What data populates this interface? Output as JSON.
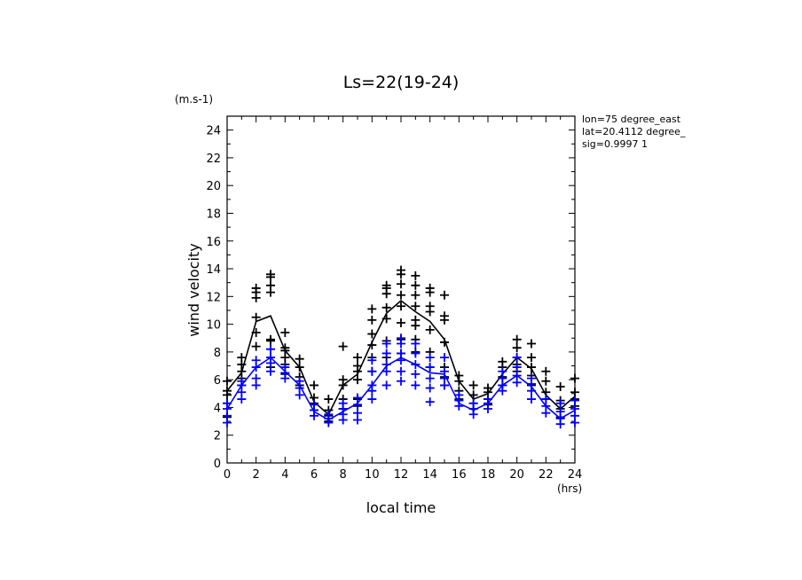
{
  "chart_data": {
    "type": "scatter",
    "title": "Ls=22(19-24)",
    "xlabel": "local time",
    "ylabel": "wind velocity",
    "x_unit": "(hrs)",
    "y_unit": "(m.s-1)",
    "info_lines": [
      "lon=75 degree_east",
      "lat=20.4112 degree_",
      "sig=0.9997 1"
    ],
    "xlim": [
      0,
      24
    ],
    "ylim": [
      0,
      25
    ],
    "xticks": [
      0,
      2,
      4,
      6,
      8,
      10,
      12,
      14,
      16,
      18,
      20,
      22,
      24
    ],
    "yticks": [
      0,
      2,
      4,
      6,
      8,
      10,
      12,
      14,
      16,
      18,
      20,
      22,
      24
    ],
    "series_colors": [
      "#000000",
      "#0000ff"
    ],
    "series": [
      {
        "line": [
          [
            0,
            5.2
          ],
          [
            1,
            6.5
          ],
          [
            2,
            10.2
          ],
          [
            3,
            10.6
          ],
          [
            4,
            8.1
          ],
          [
            5,
            6.9
          ],
          [
            6,
            4.4
          ],
          [
            7,
            3.5
          ],
          [
            8,
            5.6
          ],
          [
            9,
            6.4
          ],
          [
            10,
            8.7
          ],
          [
            11,
            10.8
          ],
          [
            12,
            11.7
          ],
          [
            13,
            10.9
          ],
          [
            14,
            10.2
          ],
          [
            15,
            8.9
          ],
          [
            16,
            5.9
          ],
          [
            17,
            4.6
          ],
          [
            18,
            5.0
          ],
          [
            19,
            6.4
          ],
          [
            20,
            7.6
          ],
          [
            21,
            6.8
          ],
          [
            22,
            4.9
          ],
          [
            23,
            3.9
          ],
          [
            24,
            4.8
          ]
        ],
        "points": [
          [
            0,
            [
              3.3,
              4.3,
              4.9,
              5.2,
              5.9
            ]
          ],
          [
            1,
            [
              5.6,
              6.1,
              6.6,
              7.1,
              7.6
            ]
          ],
          [
            2,
            [
              8.4,
              9.4,
              10.5,
              11.9,
              12.3,
              12.6
            ]
          ],
          [
            3,
            [
              6.9,
              7.6,
              8.2,
              8.8,
              8.9,
              12.3,
              12.8,
              13.4,
              13.6
            ]
          ],
          [
            4,
            [
              6.4,
              7.1,
              7.6,
              8.1,
              8.3,
              9.4
            ]
          ],
          [
            5,
            [
              5.6,
              6.2,
              6.9,
              7.5
            ]
          ],
          [
            6,
            [
              3.8,
              4.3,
              4.7,
              5.6
            ]
          ],
          [
            7,
            [
              3.0,
              3.4,
              3.8,
              4.6
            ]
          ],
          [
            8,
            [
              3.9,
              4.6,
              5.6,
              6.0,
              8.4
            ]
          ],
          [
            9,
            [
              4.1,
              4.6,
              6.0,
              6.6,
              7.0,
              7.6
            ]
          ],
          [
            10,
            [
              6.6,
              7.6,
              8.5,
              9.3,
              10.3,
              11.1
            ]
          ],
          [
            11,
            [
              7.6,
              8.8,
              10.4,
              11.2,
              12.2,
              12.6,
              12.8
            ]
          ],
          [
            12,
            [
              7.9,
              8.9,
              10.1,
              11.3,
              12.1,
              12.9,
              13.6,
              13.9
            ]
          ],
          [
            13,
            [
              8.0,
              8.9,
              9.9,
              10.3,
              11.3,
              12.1,
              12.8,
              13.5
            ]
          ],
          [
            14,
            [
              6.9,
              8.0,
              9.6,
              10.9,
              11.3,
              12.3,
              12.6
            ]
          ],
          [
            15,
            [
              5.6,
              6.2,
              6.9,
              8.7,
              10.3,
              10.6,
              12.1
            ]
          ],
          [
            16,
            [
              4.6,
              5.2,
              5.9,
              6.3
            ]
          ],
          [
            17,
            [
              3.9,
              4.3,
              4.9,
              5.6
            ]
          ],
          [
            18,
            [
              4.2,
              4.6,
              5.1,
              5.4
            ]
          ],
          [
            19,
            [
              5.6,
              6.2,
              6.9,
              7.3
            ]
          ],
          [
            20,
            [
              6.6,
              7.1,
              7.6,
              8.3,
              8.9
            ]
          ],
          [
            21,
            [
              5.6,
              6.3,
              6.9,
              7.6,
              8.6
            ]
          ],
          [
            22,
            [
              4.6,
              5.1,
              5.9,
              6.6
            ]
          ],
          [
            23,
            [
              3.3,
              3.9,
              4.5,
              5.5
            ]
          ],
          [
            24,
            [
              4.1,
              4.6,
              5.1,
              6.1
            ]
          ]
        ]
      },
      {
        "line": [
          [
            0,
            3.9
          ],
          [
            1,
            5.6
          ],
          [
            2,
            6.9
          ],
          [
            3,
            7.6
          ],
          [
            4,
            6.6
          ],
          [
            5,
            5.6
          ],
          [
            6,
            3.7
          ],
          [
            7,
            3.1
          ],
          [
            8,
            3.7
          ],
          [
            9,
            4.3
          ],
          [
            10,
            5.6
          ],
          [
            11,
            7.0
          ],
          [
            12,
            7.6
          ],
          [
            13,
            7.1
          ],
          [
            14,
            6.5
          ],
          [
            15,
            6.4
          ],
          [
            16,
            4.3
          ],
          [
            17,
            3.8
          ],
          [
            18,
            4.3
          ],
          [
            19,
            5.6
          ],
          [
            20,
            6.3
          ],
          [
            21,
            5.5
          ],
          [
            22,
            4.1
          ],
          [
            23,
            3.2
          ],
          [
            24,
            3.8
          ]
        ],
        "points": [
          [
            0,
            [
              2.9,
              3.4,
              3.9,
              4.3
            ]
          ],
          [
            1,
            [
              4.6,
              5.1,
              5.6,
              5.9
            ]
          ],
          [
            2,
            [
              5.6,
              6.1,
              6.9,
              7.4
            ]
          ],
          [
            3,
            [
              6.6,
              7.2,
              7.6,
              8.2
            ]
          ],
          [
            4,
            [
              6.1,
              6.5,
              6.9
            ]
          ],
          [
            5,
            [
              4.9,
              5.4,
              5.9
            ]
          ],
          [
            6,
            [
              3.4,
              3.8,
              4.2
            ]
          ],
          [
            7,
            [
              2.9,
              3.2,
              3.5
            ]
          ],
          [
            8,
            [
              3.1,
              3.5,
              3.9,
              4.3
            ]
          ],
          [
            9,
            [
              3.1,
              3.6,
              4.2,
              4.7
            ]
          ],
          [
            10,
            [
              4.6,
              5.2,
              5.6,
              6.6,
              7.4
            ]
          ],
          [
            11,
            [
              5.6,
              6.6,
              7.1,
              7.9,
              8.6
            ]
          ],
          [
            12,
            [
              5.9,
              6.6,
              7.4,
              7.9,
              8.6,
              9.0
            ]
          ],
          [
            13,
            [
              5.6,
              6.4,
              7.1,
              7.9,
              8.6
            ]
          ],
          [
            14,
            [
              4.4,
              5.4,
              6.1,
              6.9,
              7.6
            ]
          ],
          [
            15,
            [
              5.6,
              6.1,
              6.6,
              7.6
            ]
          ],
          [
            16,
            [
              4.1,
              4.5,
              4.9
            ]
          ],
          [
            17,
            [
              3.5,
              3.9,
              4.3
            ]
          ],
          [
            18,
            [
              3.9,
              4.3,
              4.6
            ]
          ],
          [
            19,
            [
              5.2,
              5.6,
              6.1,
              6.6
            ]
          ],
          [
            20,
            [
              5.8,
              6.3,
              6.9,
              7.6
            ]
          ],
          [
            21,
            [
              4.6,
              5.2,
              5.7,
              6.1
            ]
          ],
          [
            22,
            [
              3.6,
              4.1,
              4.6
            ]
          ],
          [
            23,
            [
              2.8,
              3.2,
              3.7,
              4.3
            ]
          ],
          [
            24,
            [
              2.9,
              3.4,
              3.9,
              4.5
            ]
          ]
        ]
      }
    ]
  }
}
